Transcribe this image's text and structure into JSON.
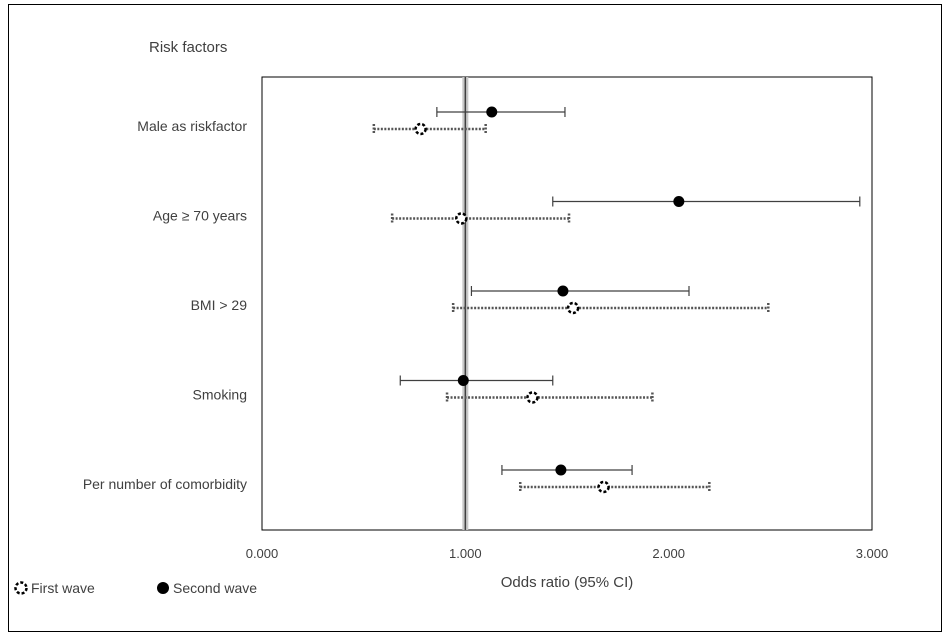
{
  "chart_data": {
    "type": "scatter",
    "title": "",
    "ylabel": "Risk factors",
    "xlabel": "Odds ratio (95% CI)",
    "xlim": [
      0,
      3
    ],
    "xticks": [
      "0.000",
      "1.000",
      "2.000",
      "3.000"
    ],
    "xtick_values": [
      0,
      1,
      2,
      3
    ],
    "reference_line": 1,
    "categories": [
      "Male as riskfactor",
      "Age ≥ 70 years",
      "BMI > 29",
      "Smoking",
      "Per number of comorbidity"
    ],
    "legend_position": "bottom-left",
    "series": [
      {
        "name": "First wave",
        "style": "dotted",
        "color": "#404040",
        "values": [
          0.78,
          0.98,
          1.53,
          1.33,
          1.68
        ],
        "ci_low": [
          0.55,
          0.64,
          0.94,
          0.91,
          1.27
        ],
        "ci_high": [
          1.1,
          1.51,
          2.49,
          1.92,
          2.2
        ]
      },
      {
        "name": "Second wave",
        "style": "solid",
        "color": "#000000",
        "values": [
          1.13,
          2.05,
          1.48,
          0.99,
          1.47
        ],
        "ci_low": [
          0.86,
          1.43,
          1.03,
          0.68,
          1.18
        ],
        "ci_high": [
          1.49,
          2.94,
          2.1,
          1.43,
          1.82
        ]
      }
    ]
  }
}
